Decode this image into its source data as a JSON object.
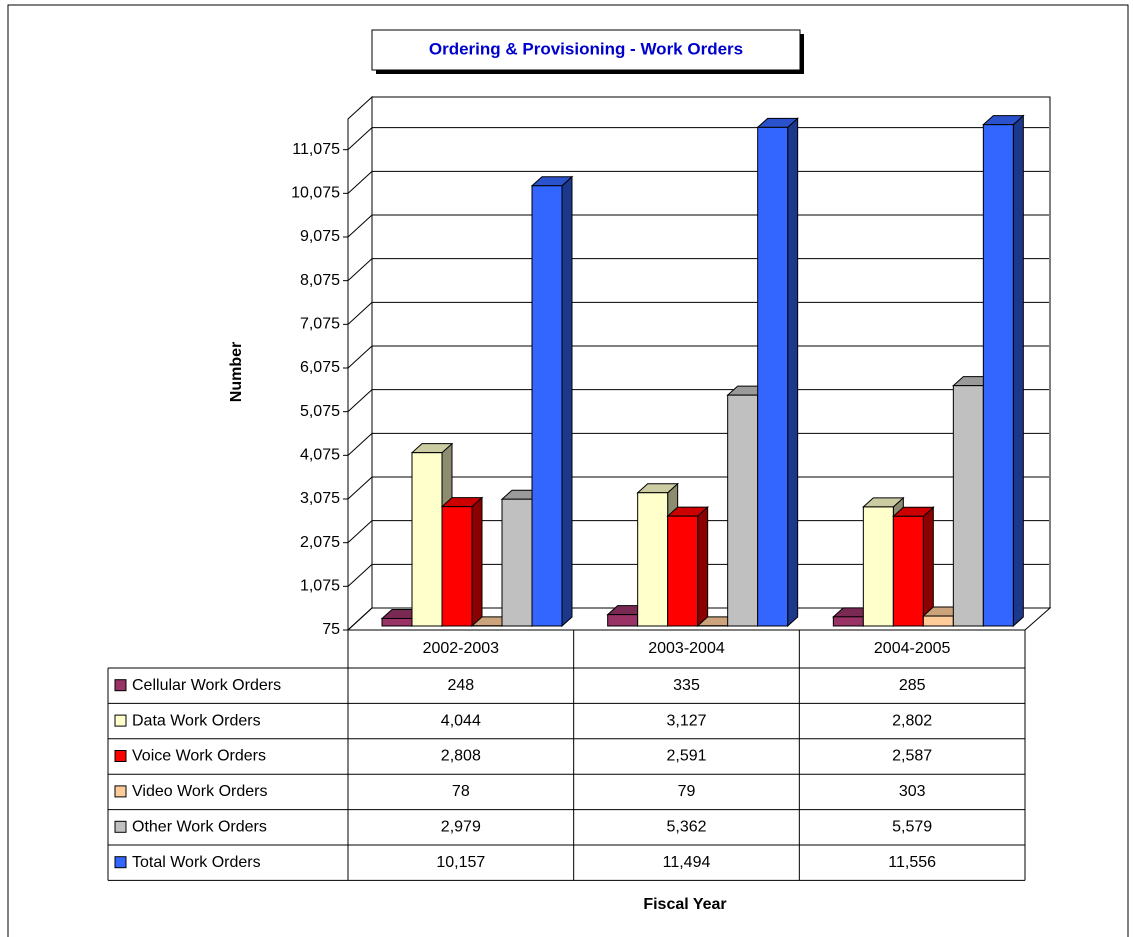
{
  "chart_data": {
    "type": "bar3d",
    "title": "Ordering & Provisioning - Work Orders",
    "y_axis_label": "Number",
    "x_axis_label": "Fiscal Year",
    "categories": [
      "2002-2003",
      "2003-2004",
      "2004-2005"
    ],
    "series": [
      {
        "name": "Cellular Work Orders",
        "color": "#993366",
        "values": [
          248,
          335,
          285
        ],
        "value_labels": [
          "248",
          "335",
          "285"
        ]
      },
      {
        "name": "Data Work Orders",
        "color": "#ffffcc",
        "values": [
          4044,
          3127,
          2802
        ],
        "value_labels": [
          "4,044",
          "3,127",
          "2,802"
        ]
      },
      {
        "name": "Voice Work Orders",
        "color": "#ff0000",
        "values": [
          2808,
          2591,
          2587
        ],
        "value_labels": [
          "2,808",
          "2,591",
          "2,587"
        ]
      },
      {
        "name": "Video Work Orders",
        "color": "#ffcc99",
        "values": [
          78,
          79,
          303
        ],
        "value_labels": [
          "78",
          "79",
          "303"
        ]
      },
      {
        "name": "Other Work Orders",
        "color": "#c0c0c0",
        "values": [
          2979,
          5362,
          5579
        ],
        "value_labels": [
          "2,979",
          "5,362",
          "5,579"
        ]
      },
      {
        "name": "Total Work Orders",
        "color": "#3366ff",
        "values": [
          10157,
          11494,
          11556
        ],
        "value_labels": [
          "10,157",
          "11,494",
          "11,556"
        ]
      }
    ],
    "ylim": [
      75,
      12075
    ],
    "yticks": [
      75,
      {
        "value": 1075,
        "label": "1,075"
      },
      {
        "value": 2075,
        "label": "2,075"
      },
      {
        "value": 3075,
        "label": "3,075"
      },
      {
        "value": 4075,
        "label": "4,075"
      },
      {
        "value": 5075,
        "label": "5,075"
      },
      {
        "value": 6075,
        "label": "6,075"
      },
      {
        "value": 7075,
        "label": "7,075"
      },
      {
        "value": 8075,
        "label": "8,075"
      },
      {
        "value": 9075,
        "label": "9,075"
      },
      {
        "value": 10075,
        "label": "10,075"
      },
      {
        "value": 11075,
        "label": "11,075"
      }
    ],
    "grid": true
  }
}
